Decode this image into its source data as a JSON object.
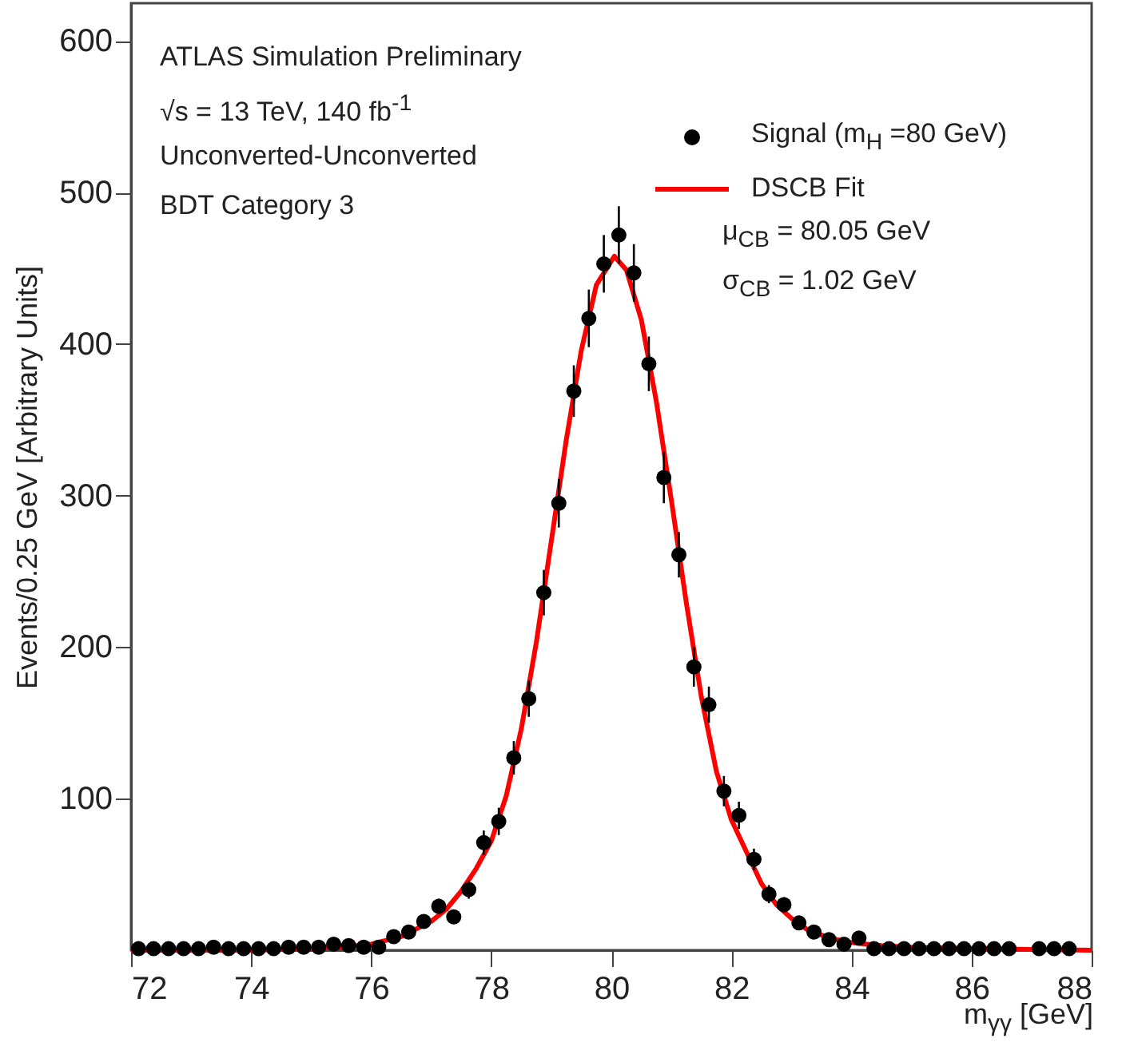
{
  "chart_data": {
    "type": "scatter",
    "xlabel": "m$_{γγ}$ [GeV]",
    "ylabel": "Events/0.25 GeV [Arbitrary Units]",
    "xlim": [
      72,
      88
    ],
    "ylim": [
      0,
      625
    ],
    "xticks": [
      72,
      74,
      76,
      78,
      80,
      82,
      84,
      86,
      88
    ],
    "yticks": [
      100,
      200,
      300,
      400,
      500,
      600
    ],
    "legend": "top right",
    "annotations": [
      "ATLAS Simulation Preliminary",
      "√s = 13 TeV, 140 fb$^{-1}$",
      "Unconverted-Unconverted",
      "BDT Category 3",
      "μ$_{CB}$ = 80.05 GeV",
      "σ$_{CB}$ = 1.02 GeV"
    ],
    "series": [
      {
        "name": "Signal (m$_{H}$ =80 GeV)",
        "marker": "circle",
        "color": "#000000",
        "x": [
          72.125,
          72.375,
          72.625,
          72.875,
          73.125,
          73.375,
          73.625,
          73.875,
          74.125,
          74.375,
          74.625,
          74.875,
          75.125,
          75.375,
          75.625,
          75.875,
          76.125,
          76.375,
          76.625,
          76.875,
          77.125,
          77.375,
          77.625,
          77.875,
          78.125,
          78.375,
          78.625,
          78.875,
          79.125,
          79.375,
          79.625,
          79.875,
          80.125,
          80.375,
          80.625,
          80.875,
          81.125,
          81.375,
          81.625,
          81.875,
          82.125,
          82.375,
          82.625,
          82.875,
          83.125,
          83.375,
          83.625,
          83.875,
          84.125,
          84.375,
          84.625,
          84.875,
          85.125,
          85.375,
          85.625,
          85.875,
          86.125,
          86.375,
          86.625,
          87.125,
          87.375,
          87.625
        ],
        "values": [
          1,
          1,
          1,
          1,
          1,
          2,
          1,
          1,
          1,
          1,
          2,
          2,
          2,
          4,
          3,
          2,
          2,
          9,
          12,
          19,
          29,
          22,
          40,
          71,
          85,
          127,
          166,
          236,
          295,
          369,
          417,
          453,
          472,
          447,
          387,
          312,
          261,
          187,
          162,
          105,
          89,
          60,
          37,
          30,
          18,
          12,
          7,
          4,
          8,
          1,
          1,
          1,
          1,
          1,
          1,
          1,
          1,
          1,
          1,
          1,
          1,
          1
        ],
        "errors": [
          null,
          null,
          null,
          null,
          null,
          null,
          null,
          null,
          null,
          null,
          null,
          null,
          null,
          null,
          null,
          null,
          null,
          3,
          4,
          4,
          5,
          4,
          6,
          8,
          9,
          11,
          12,
          15,
          16,
          17,
          19,
          19,
          19,
          19,
          18,
          17,
          15,
          13,
          12,
          10,
          9,
          7,
          6,
          5,
          4,
          3,
          null,
          null,
          null,
          null,
          null,
          null,
          null,
          null,
          null,
          null,
          null,
          null,
          null,
          null,
          null,
          null
        ]
      },
      {
        "name": "DSCB Fit",
        "type": "line",
        "color": "#ff0000",
        "x": [
          72,
          74,
          75,
          75.5,
          76,
          76.5,
          77,
          77.25,
          77.5,
          77.75,
          78,
          78.25,
          78.5,
          78.75,
          79,
          79.25,
          79.5,
          79.75,
          80.05,
          80.25,
          80.5,
          80.75,
          81,
          81.25,
          81.5,
          81.75,
          82,
          82.25,
          82.5,
          82.75,
          83,
          83.25,
          83.5,
          83.75,
          84,
          84.5,
          85,
          86,
          88
        ],
        "values": [
          0,
          0,
          1,
          2,
          4,
          9,
          19,
          27,
          39,
          54,
          72,
          102,
          146,
          203,
          270,
          337,
          396,
          439,
          458,
          449,
          416,
          362,
          297,
          229,
          167,
          118,
          86,
          65,
          44,
          30,
          21,
          14,
          10,
          7,
          5,
          3,
          2,
          1,
          0
        ]
      }
    ]
  }
}
